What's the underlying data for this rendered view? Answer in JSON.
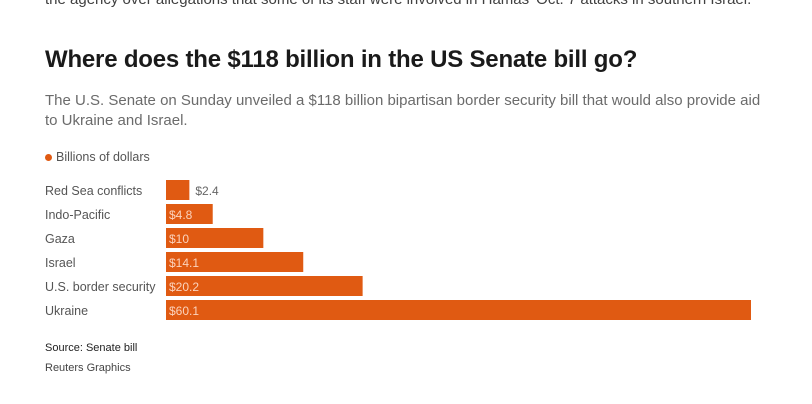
{
  "article": {
    "preceding_text": "the agency over allegations that some of its staff were involved in Hamas' Oct. 7 attacks in southern Israel."
  },
  "chart_data": {
    "type": "bar",
    "orientation": "horizontal",
    "title": "Where does the $118 billion in the US Senate bill go?",
    "subtitle": "The U.S. Senate on Sunday unveiled a $118 billion bipartisan border security bill that would also provide aid to Ukraine and Israel.",
    "legend": "Billions of dollars",
    "categories": [
      "Red Sea conflicts",
      "Indo-Pacific",
      "Gaza",
      "Israel",
      "U.S. border security",
      "Ukraine"
    ],
    "values": [
      2.4,
      4.8,
      10,
      14.1,
      20.2,
      60.1
    ],
    "labels": [
      "$2.4",
      "$4.8",
      "$10",
      "$14.1",
      "$20.2",
      "$60.1"
    ],
    "color": "#e05a12",
    "grid": false,
    "source": "Source: Senate bill",
    "credit": "Reuters Graphics"
  }
}
